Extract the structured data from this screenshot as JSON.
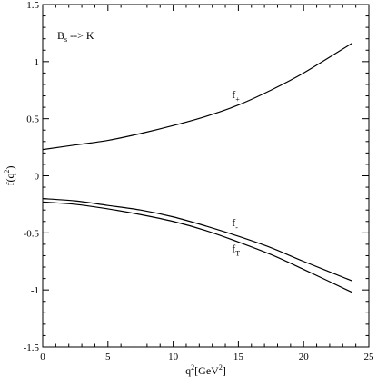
{
  "chart_data": {
    "type": "line",
    "title": "",
    "annotation": {
      "text": "B",
      "sub": "s",
      "rest": " --> K"
    },
    "xlabel": {
      "base": "q",
      "sup": "2",
      "rest1": "[GeV",
      "sup2": "2",
      "rest2": "]"
    },
    "ylabel": {
      "base": "f(q",
      "sup": "2",
      "rest": ")"
    },
    "xlim": [
      0,
      25
    ],
    "ylim": [
      -1.5,
      1.5
    ],
    "xticks": [
      0,
      5,
      10,
      15,
      20,
      25
    ],
    "xtick_labels": [
      "0",
      "5",
      "10",
      "15",
      "20",
      "25"
    ],
    "yticks": [
      -1.5,
      -1,
      -0.5,
      0,
      0.5,
      1,
      1.5
    ],
    "ytick_labels": [
      "-1.5",
      "-1",
      "-0.5",
      "0",
      "0.5",
      "1",
      "1.5"
    ],
    "grid": false,
    "series": [
      {
        "name": "f+",
        "label_base": "f",
        "label_sub": "+",
        "x": [
          0,
          2.5,
          5,
          7.5,
          10,
          12.5,
          15,
          17.5,
          20,
          23.7
        ],
        "y": [
          0.23,
          0.27,
          0.31,
          0.37,
          0.44,
          0.52,
          0.62,
          0.75,
          0.9,
          1.16
        ]
      },
      {
        "name": "f-",
        "label_base": "f",
        "label_sub": "-",
        "x": [
          0,
          2.5,
          5,
          7.5,
          10,
          12.5,
          15,
          17.5,
          20,
          23.7
        ],
        "y": [
          -0.2,
          -0.22,
          -0.26,
          -0.3,
          -0.36,
          -0.44,
          -0.53,
          -0.63,
          -0.75,
          -0.92
        ]
      },
      {
        "name": "fT",
        "label_base": "f",
        "label_sub": "T",
        "x": [
          0,
          2.5,
          5,
          7.5,
          10,
          12.5,
          15,
          17.5,
          20,
          23.7
        ],
        "y": [
          -0.23,
          -0.25,
          -0.29,
          -0.34,
          -0.4,
          -0.48,
          -0.58,
          -0.69,
          -0.82,
          -1.02
        ]
      }
    ],
    "series_label_anchor": [
      {
        "x": 14.5,
        "y": 0.68
      },
      {
        "x": 14.5,
        "y": -0.44
      },
      {
        "x": 14.5,
        "y": -0.67
      }
    ]
  }
}
